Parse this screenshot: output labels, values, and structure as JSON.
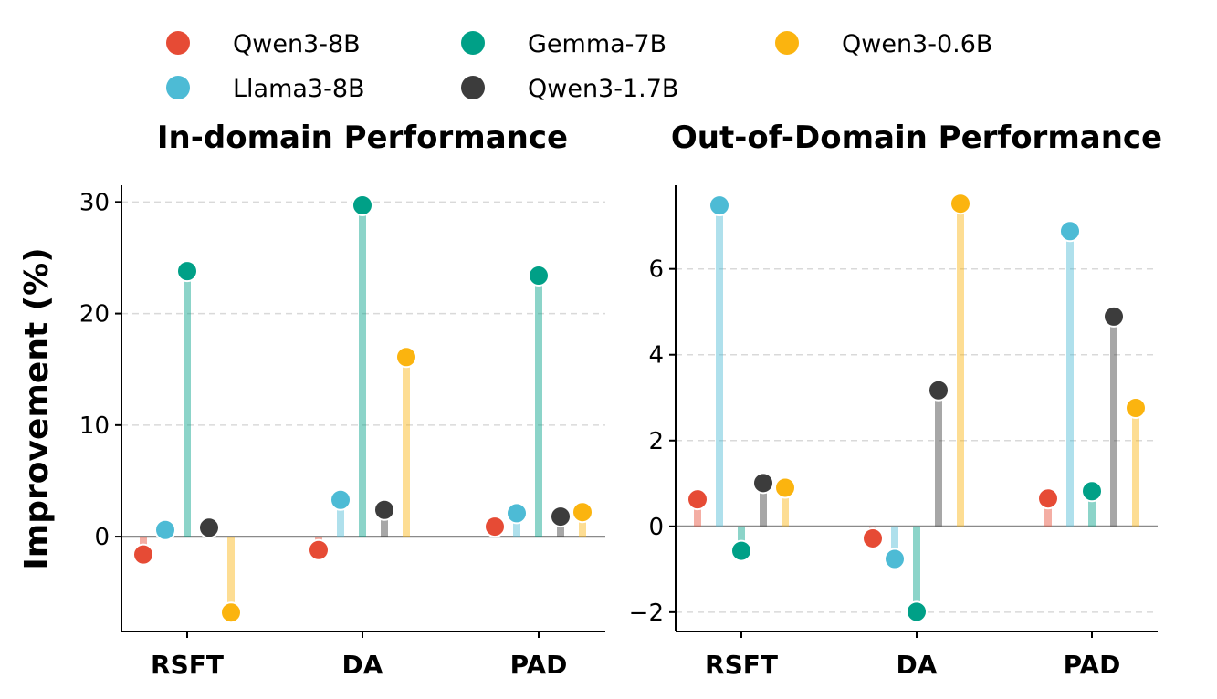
{
  "legend": [
    {
      "name": "Qwen3-8B",
      "color": "#e64b35"
    },
    {
      "name": "Llama3-8B",
      "color": "#4dbbd5"
    },
    {
      "name": "Gemma-7B",
      "color": "#00a087"
    },
    {
      "name": "Qwen3-1.7B",
      "color": "#3c3c3c"
    },
    {
      "name": "Qwen3-0.6B",
      "color": "#fbb40f"
    }
  ],
  "ylabel": "Improvement (%)",
  "chart_data": [
    {
      "type": "lollipop",
      "title": "In-domain Performance",
      "categories": [
        "RSFT",
        "DA",
        "PAD"
      ],
      "ylim": [
        -8.5,
        31.5
      ],
      "yticks": [
        0,
        10,
        20,
        30
      ],
      "grid": true,
      "series": [
        {
          "name": "Qwen3-8B",
          "values": [
            -1.6,
            -1.2,
            0.9
          ]
        },
        {
          "name": "Llama3-8B",
          "values": [
            0.6,
            3.3,
            2.1
          ]
        },
        {
          "name": "Gemma-7B",
          "values": [
            23.8,
            29.7,
            23.4
          ]
        },
        {
          "name": "Qwen3-1.7B",
          "values": [
            0.8,
            2.4,
            1.8
          ]
        },
        {
          "name": "Qwen3-0.6B",
          "values": [
            -6.8,
            16.1,
            2.2
          ]
        }
      ]
    },
    {
      "type": "lollipop",
      "title": "Out-of-Domain Performance",
      "categories": [
        "RSFT",
        "DA",
        "PAD"
      ],
      "ylim": [
        -2.45,
        7.95
      ],
      "yticks": [
        -2,
        0,
        2,
        4,
        6
      ],
      "grid": true,
      "series": [
        {
          "name": "Qwen3-8B",
          "values": [
            0.63,
            -0.28,
            0.65
          ]
        },
        {
          "name": "Llama3-8B",
          "values": [
            7.48,
            -0.76,
            6.88
          ]
        },
        {
          "name": "Gemma-7B",
          "values": [
            -0.57,
            -1.99,
            0.82
          ]
        },
        {
          "name": "Qwen3-1.7B",
          "values": [
            1.01,
            3.17,
            4.89
          ]
        },
        {
          "name": "Qwen3-0.6B",
          "values": [
            0.9,
            7.52,
            2.76
          ]
        }
      ]
    }
  ]
}
